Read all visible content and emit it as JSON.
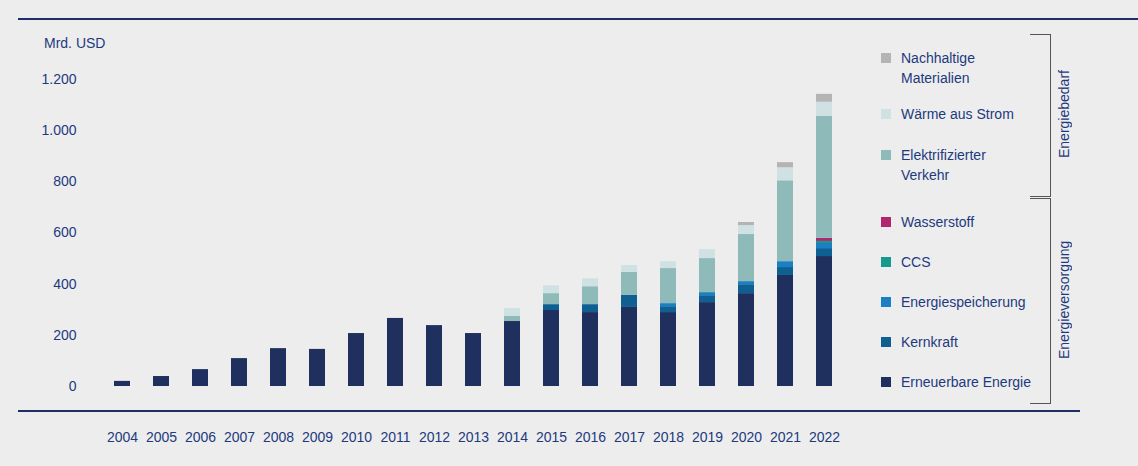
{
  "chart_data": {
    "type": "bar",
    "stacked": true,
    "y_label": "Mrd. USD",
    "categories": [
      "2004",
      "2005",
      "2006",
      "2007",
      "2008",
      "2009",
      "2010",
      "2011",
      "2012",
      "2013",
      "2014",
      "2015",
      "2016",
      "2017",
      "2018",
      "2019",
      "2020",
      "2021",
      "2022"
    ],
    "series": [
      {
        "name": "Erneuerbare Energie",
        "color": "#1f2f5e",
        "values": [
          20,
          39,
          66,
          109,
          148,
          145,
          207,
          266,
          238,
          207,
          254,
          297,
          289,
          309,
          289,
          328,
          363,
          434,
          508
        ]
      },
      {
        "name": "Kernkraft",
        "color": "#0e5f92",
        "values": [
          0,
          0,
          0,
          0,
          0,
          0,
          0,
          0,
          0,
          0,
          0,
          23,
          31,
          47,
          23,
          27,
          35,
          31,
          31
        ]
      },
      {
        "name": "Energiespeicherung",
        "color": "#1b80c3",
        "values": [
          0,
          0,
          0,
          0,
          0,
          0,
          0,
          0,
          0,
          0,
          0,
          0,
          0,
          0,
          12,
          12,
          12,
          23,
          20
        ]
      },
      {
        "name": "CCS",
        "color": "#149a8e",
        "values": [
          0,
          0,
          0,
          0,
          0,
          0,
          0,
          0,
          0,
          0,
          0,
          0,
          0,
          0,
          0,
          0,
          0,
          0,
          8
        ]
      },
      {
        "name": "Wasserstoff",
        "color": "#b1266f",
        "values": [
          0,
          0,
          0,
          0,
          0,
          0,
          0,
          0,
          0,
          0,
          0,
          0,
          0,
          0,
          0,
          0,
          0,
          0,
          12
        ]
      },
      {
        "name": "Elektrifizierter Verkehr",
        "color": "#8fbaba",
        "values": [
          0,
          0,
          0,
          0,
          0,
          0,
          0,
          0,
          0,
          0,
          20,
          43,
          70,
          90,
          137,
          133,
          184,
          316,
          477
        ]
      },
      {
        "name": "Wärme aus Strom",
        "color": "#cfe1e3",
        "values": [
          0,
          0,
          0,
          0,
          0,
          0,
          0,
          0,
          0,
          0,
          31,
          31,
          31,
          27,
          27,
          35,
          35,
          51,
          55
        ]
      },
      {
        "name": "Nachhaltige Materialien",
        "color": "#b4b4b4",
        "values": [
          0,
          0,
          0,
          0,
          0,
          0,
          0,
          0,
          0,
          0,
          0,
          0,
          0,
          0,
          0,
          0,
          12,
          20,
          31
        ]
      }
    ],
    "legend_groups": [
      {
        "name": "Energiebedarf",
        "series": [
          "Nachhaltige Materialien",
          "Wärme aus Strom",
          "Elektrifizierter Verkehr"
        ]
      },
      {
        "name": "Energieversorgung",
        "series": [
          "Wasserstoff",
          "CCS",
          "Energiespeicherung",
          "Kernkraft",
          "Erneuerbare Energie"
        ]
      }
    ],
    "ylim": [
      0,
      1200
    ],
    "yticks": [
      0,
      200,
      400,
      600,
      800,
      {
        "value": 1000,
        "label": "1.000"
      },
      {
        "value": 1200,
        "label": "1.200"
      }
    ],
    "grid": false,
    "legend": "right"
  }
}
